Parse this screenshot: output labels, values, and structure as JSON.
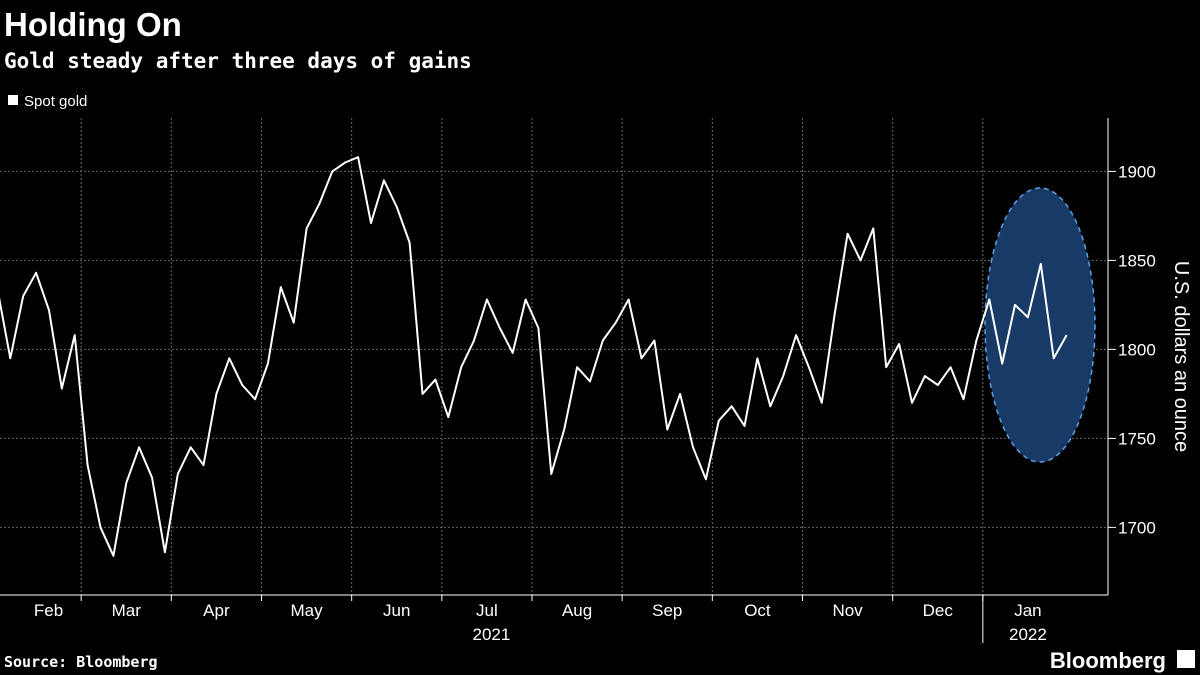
{
  "chart_data": {
    "type": "line",
    "title": "Holding On",
    "subtitle": "Gold steady after three days of gains",
    "y_label": "U.S. dollars an ounce",
    "source": "Source: Bloomberg",
    "brand": "Bloomberg",
    "year_labels": [
      "2021",
      "2022"
    ],
    "categories": [
      "Feb",
      null,
      null,
      null,
      null,
      null,
      null,
      "Mar",
      null,
      null,
      null,
      null,
      null,
      null,
      "Apr",
      null,
      null,
      null,
      null,
      null,
      null,
      "May",
      null,
      null,
      null,
      null,
      null,
      null,
      "Jun",
      null,
      null,
      null,
      null,
      null,
      null,
      "Jul",
      null,
      null,
      null,
      null,
      null,
      null,
      "Aug",
      null,
      null,
      null,
      null,
      null,
      null,
      "Sep",
      null,
      null,
      null,
      null,
      null,
      null,
      "Oct",
      null,
      null,
      null,
      null,
      null,
      null,
      "Nov",
      null,
      null,
      null,
      null,
      null,
      null,
      "Dec",
      null,
      null,
      null,
      null,
      null,
      null,
      "Jan",
      null,
      null,
      null,
      null,
      null,
      null
    ],
    "series": [
      {
        "name": "Spot gold",
        "color": "#ffffff",
        "values": [
          1834,
          1795,
          1830,
          1843,
          1822,
          1778,
          1808,
          1735,
          1700,
          1684,
          1725,
          1745,
          1728,
          1686,
          1730,
          1745,
          1735,
          1775,
          1795,
          1780,
          1772,
          1792,
          1835,
          1815,
          1868,
          1882,
          1900,
          1905,
          1908,
          1871,
          1895,
          1880,
          1860,
          1775,
          1783,
          1762,
          1790,
          1805,
          1828,
          1812,
          1798,
          1828,
          1812,
          1730,
          1755,
          1790,
          1782,
          1805,
          1815,
          1828,
          1795,
          1805,
          1755,
          1775,
          1745,
          1727,
          1760,
          1768,
          1757,
          1795,
          1768,
          1785,
          1808,
          1790,
          1770,
          1820,
          1865,
          1850,
          1868,
          1790,
          1803,
          1770,
          1785,
          1780,
          1790,
          1772,
          1805,
          1828,
          1792,
          1825,
          1818,
          1848,
          1795,
          1808
        ]
      }
    ],
    "ylim": [
      1662,
      1930
    ],
    "yticks": [
      1700,
      1750,
      1800,
      1850,
      1900
    ],
    "grid": true,
    "legend": "top-left"
  }
}
